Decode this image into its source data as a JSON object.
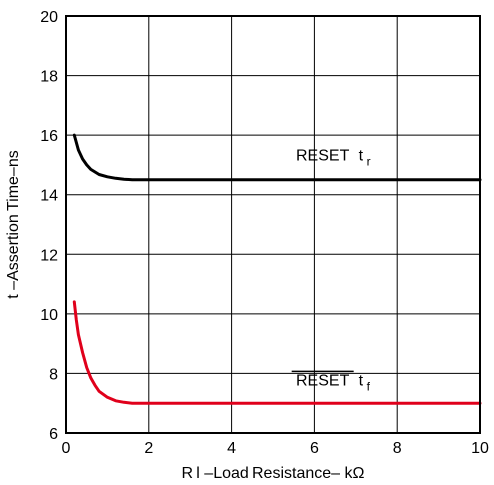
{
  "chart_data": {
    "type": "line",
    "title": "",
    "xlabel": "R l –Load Resistance– kΩ",
    "ylabel": "t –Assertion Time–ns",
    "xlim": [
      0,
      10
    ],
    "ylim": [
      6,
      20
    ],
    "x_ticks": [
      0,
      2,
      4,
      6,
      8,
      10
    ],
    "y_ticks": [
      6,
      8,
      10,
      12,
      14,
      16,
      18,
      20
    ],
    "grid": true,
    "series": [
      {
        "name": "RESET tr",
        "color": "#000000",
        "x": [
          0.2,
          0.3,
          0.4,
          0.5,
          0.6,
          0.8,
          1.0,
          1.2,
          1.4,
          1.6,
          2,
          3,
          4,
          5,
          6,
          7,
          8,
          9,
          10
        ],
        "y": [
          16.0,
          15.5,
          15.2,
          15.0,
          14.85,
          14.68,
          14.6,
          14.55,
          14.52,
          14.5,
          14.5,
          14.5,
          14.5,
          14.5,
          14.5,
          14.5,
          14.5,
          14.5,
          14.5
        ]
      },
      {
        "name": "RESET tf",
        "color": "#e0001b",
        "x": [
          0.2,
          0.25,
          0.3,
          0.4,
          0.5,
          0.6,
          0.7,
          0.8,
          1.0,
          1.2,
          1.4,
          1.6,
          2,
          3,
          4,
          5,
          6,
          7,
          8,
          9,
          10
        ],
        "y": [
          10.4,
          9.8,
          9.3,
          8.7,
          8.2,
          7.85,
          7.6,
          7.4,
          7.2,
          7.08,
          7.03,
          7.0,
          7.0,
          7.0,
          7.0,
          7.0,
          7.0,
          7.0,
          7.0,
          7.0,
          7.0
        ]
      }
    ],
    "annotations": [
      {
        "id": "tr",
        "main": "RESET",
        "sub": "r",
        "prefix": "t",
        "overline": false,
        "x": 6.2,
        "y": 15.15
      },
      {
        "id": "tf",
        "main": "RESET",
        "sub": "f",
        "prefix": "t",
        "overline": true,
        "x": 6.2,
        "y": 7.6
      }
    ]
  }
}
